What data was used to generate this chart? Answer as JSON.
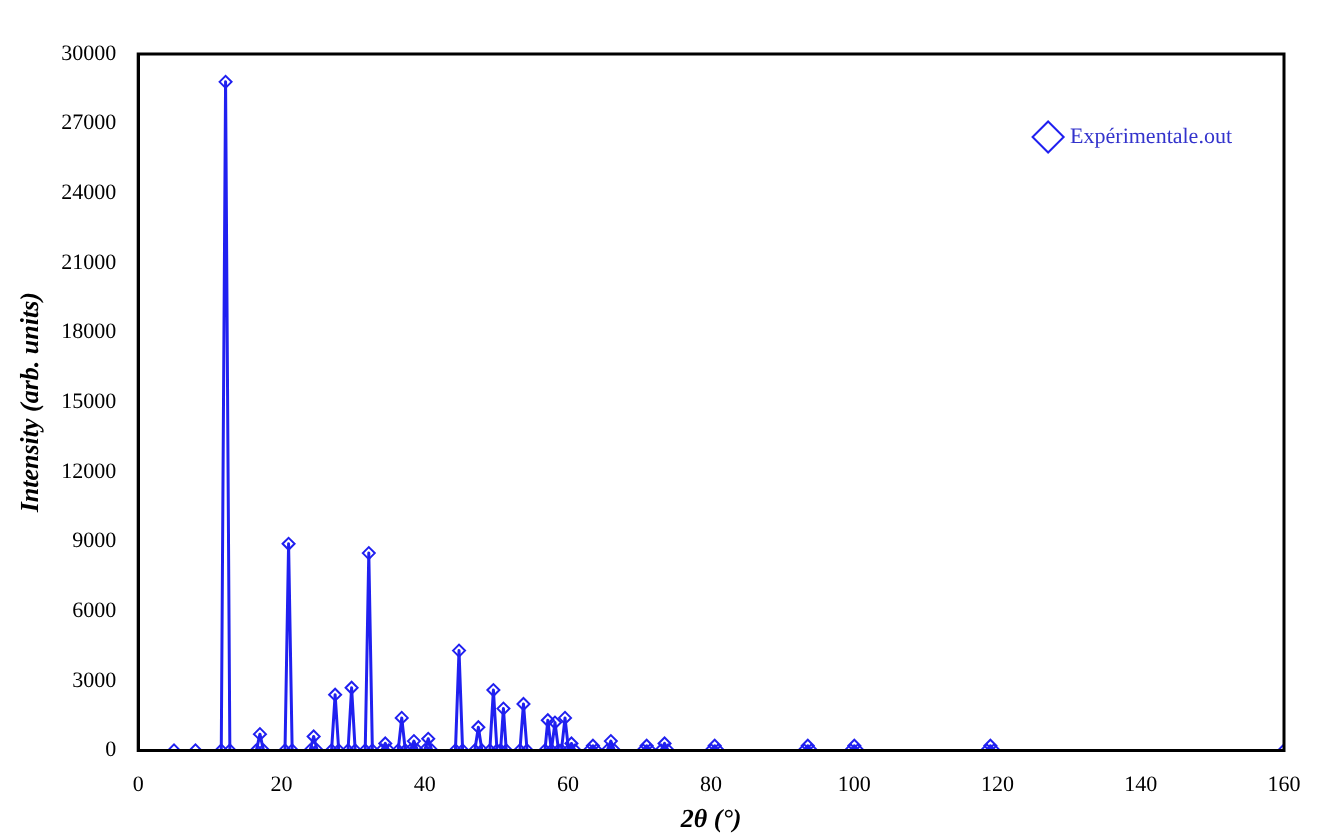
{
  "chart_data": {
    "type": "line",
    "xlabel": "2θ (°)",
    "ylabel": "Intensity (arb. units)",
    "xlim": [
      0,
      160
    ],
    "xticks": [
      0,
      20,
      40,
      60,
      80,
      100,
      120,
      140,
      160
    ],
    "ylim": [
      0,
      30000
    ],
    "yticks": [
      0,
      3000,
      6000,
      9000,
      12000,
      15000,
      18000,
      21000,
      24000,
      27000,
      30000
    ],
    "grid": false,
    "legend": "top right",
    "marker": "diamond",
    "line_style": "solid",
    "series": [
      {
        "name": "Expérimentale.out",
        "color": "#2020f0",
        "x": [
          5,
          8,
          11.6,
          12.2,
          12.8,
          16.5,
          17,
          17.5,
          20.5,
          21,
          21.5,
          24,
          24.5,
          25,
          27,
          27.5,
          28,
          29.3,
          29.8,
          30.3,
          31.7,
          32.2,
          32.7,
          34,
          34.5,
          35,
          36.3,
          36.8,
          37.3,
          38,
          38.5,
          39,
          40,
          40.5,
          41,
          44.3,
          44.8,
          45.3,
          47,
          47.5,
          48,
          49.1,
          49.6,
          50.1,
          50.6,
          51,
          51.4,
          53.3,
          53.8,
          54.3,
          56.8,
          57.2,
          57.7,
          58.2,
          58.7,
          59.1,
          59.6,
          60.1,
          60.5,
          61,
          63,
          63.5,
          64,
          65.5,
          66,
          66.5,
          70.5,
          71,
          71.5,
          73,
          73.5,
          74,
          80,
          80.5,
          81,
          93,
          93.5,
          94,
          99.5,
          100,
          100.5,
          118.5,
          119,
          119.5,
          160
        ],
        "values": [
          0,
          0,
          0,
          28800,
          0,
          0,
          700,
          0,
          0,
          8900,
          0,
          0,
          600,
          0,
          0,
          2400,
          0,
          0,
          2700,
          0,
          0,
          8500,
          0,
          0,
          300,
          0,
          0,
          1400,
          0,
          0,
          400,
          0,
          0,
          500,
          0,
          0,
          4300,
          0,
          0,
          1000,
          0,
          0,
          2600,
          0,
          0,
          1800,
          0,
          0,
          2000,
          0,
          0,
          1300,
          0,
          1200,
          0,
          0,
          1400,
          0,
          300,
          0,
          0,
          200,
          0,
          0,
          400,
          0,
          0,
          200,
          0,
          0,
          300,
          0,
          0,
          200,
          0,
          0,
          200,
          0,
          0,
          200,
          0,
          0,
          200,
          0,
          0
        ]
      }
    ]
  }
}
